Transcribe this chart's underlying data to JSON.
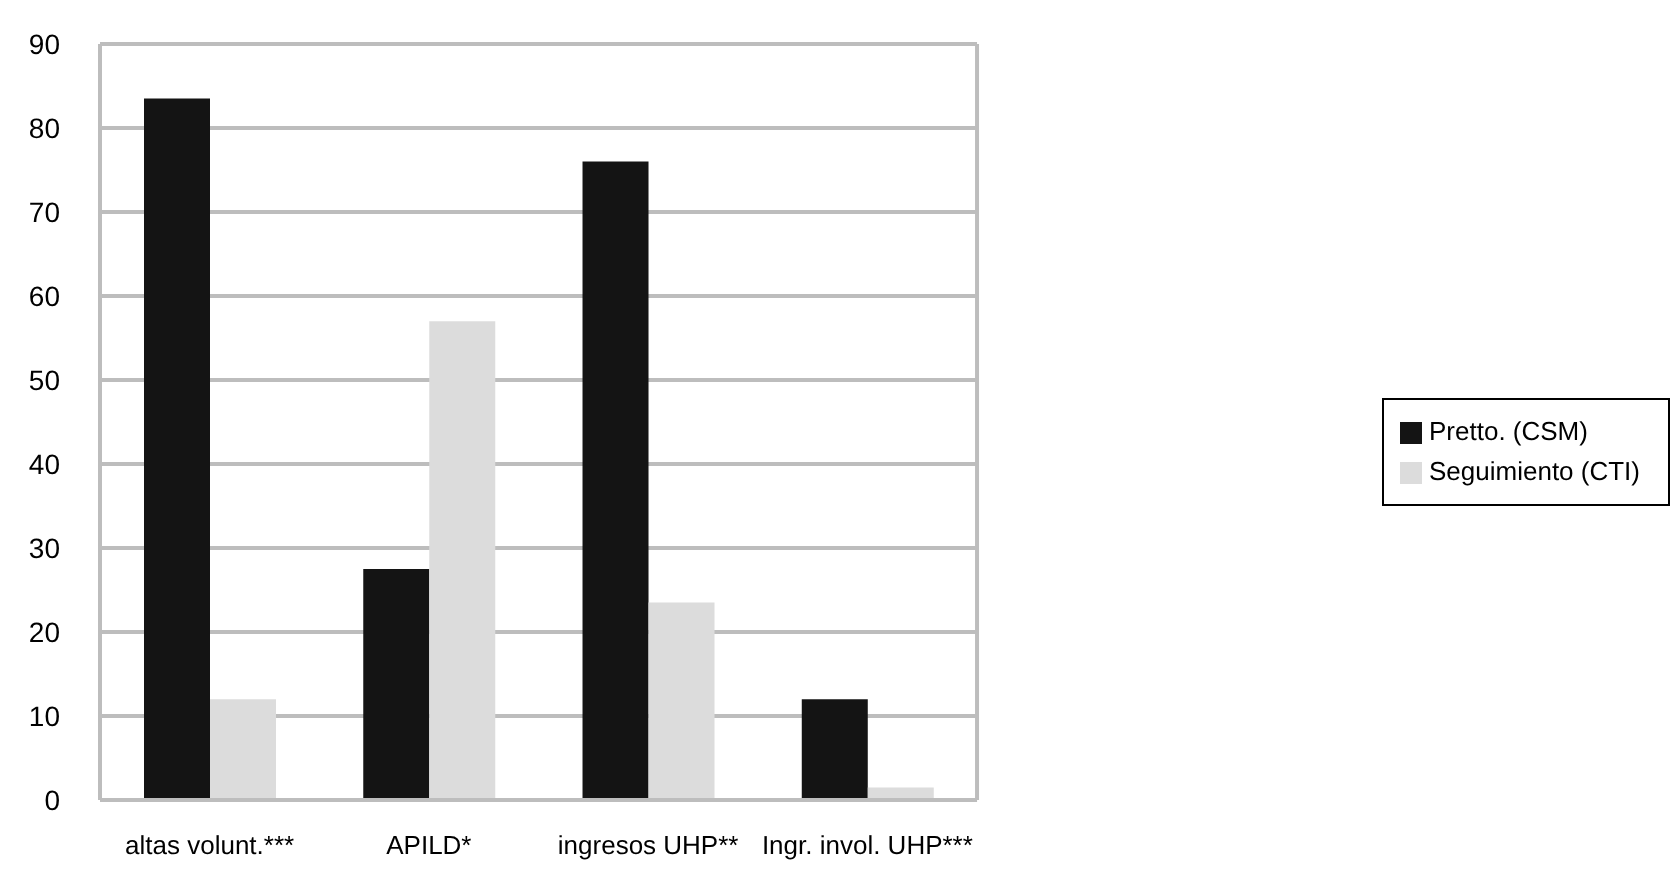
{
  "chart_data": {
    "type": "bar",
    "categories": [
      "altas volunt.***",
      "APILD*",
      "ingresos UHP**",
      "Ingr. invol. UHP***"
    ],
    "series": [
      {
        "name": "Pretto. (CSM)",
        "color": "#141414",
        "values": [
          83.5,
          27.5,
          76,
          12
        ]
      },
      {
        "name": "Seguimiento (CTI)",
        "color": "#dcdcdc",
        "values": [
          12,
          57,
          23.5,
          1.5
        ]
      }
    ],
    "ylim": [
      0,
      90
    ],
    "yticks": [
      0,
      10,
      20,
      30,
      40,
      50,
      60,
      70,
      80,
      90
    ],
    "grid": "y",
    "legend": "right"
  }
}
